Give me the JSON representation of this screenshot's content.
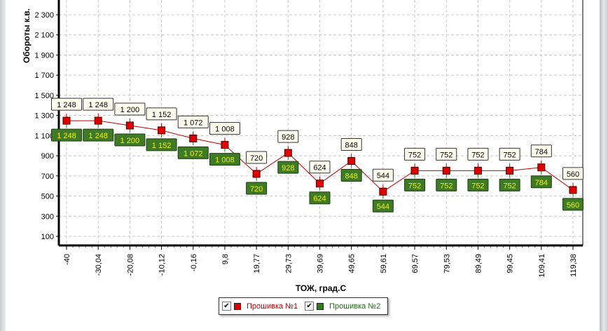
{
  "chart_data": {
    "type": "line",
    "xlabel": "ТОЖ, град.С",
    "ylabel": "Обороты к.в.",
    "ylim": [
      100,
      2300
    ],
    "yticks": [
      "100",
      "300",
      "500",
      "700",
      "900",
      "1 100",
      "1 300",
      "1 500",
      "1 700",
      "1 900",
      "2 100",
      "2 300"
    ],
    "categories": [
      "-40",
      "-30,04",
      "-20,08",
      "-10,12",
      "-0,16",
      "9,8",
      "19,77",
      "29,73",
      "39,69",
      "49,65",
      "59,61",
      "69,57",
      "79,53",
      "89,49",
      "99,45",
      "109,41",
      "119,38"
    ],
    "series": [
      {
        "name": "Прошивка №1",
        "color": "#e00000",
        "values": [
          1248,
          1248,
          1200,
          1152,
          1072,
          1008,
          720,
          928,
          624,
          848,
          544,
          752,
          752,
          752,
          752,
          784,
          560
        ],
        "labels": [
          "1 248",
          "1 248",
          "1 200",
          "1 152",
          "1 072",
          "1 008",
          "720",
          "928",
          "624",
          "848",
          "544",
          "752",
          "752",
          "752",
          "752",
          "784",
          "560"
        ]
      },
      {
        "name": "Прошивка №2",
        "color": "#2e7d1e",
        "values": [
          1248,
          1248,
          1200,
          1152,
          1072,
          1008,
          720,
          928,
          624,
          848,
          544,
          752,
          752,
          752,
          752,
          784,
          560
        ],
        "labels": [
          "1 248",
          "1 248",
          "1 200",
          "1 152",
          "1 072",
          "1 008",
          "720",
          "928",
          "624",
          "848",
          "544",
          "752",
          "752",
          "752",
          "752",
          "784",
          "560"
        ]
      }
    ],
    "grid": true,
    "legend": "bottom-center"
  },
  "legend": {
    "checked_mark": "✔"
  }
}
